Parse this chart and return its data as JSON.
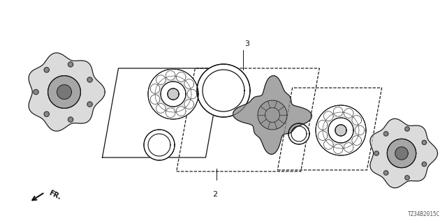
{
  "bg_color": "#ffffff",
  "line_color": "#111111",
  "diagram_code": "TZ34B2015C",
  "fr_label": "FR.",
  "label_2": "2",
  "label_3": "3",
  "figsize": [
    6.4,
    3.2
  ],
  "dpi": 100
}
